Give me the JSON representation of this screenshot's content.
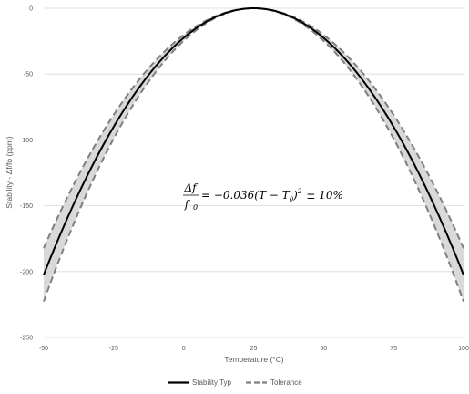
{
  "chart_data": {
    "type": "line",
    "title": "",
    "xlabel": "Temperature (°C)",
    "ylabel": "Stability - Δf/fo (ppm)",
    "xlim": [
      -50,
      100
    ],
    "ylim": [
      -250,
      0
    ],
    "x_ticks": [
      "-50",
      "-25",
      "0",
      "25",
      "50",
      "75",
      "100"
    ],
    "y_ticks": [
      "0",
      "-50",
      "-100",
      "-150",
      "-200",
      "-250"
    ],
    "grid": "horizontal",
    "legend_position": "bottom",
    "formula": {
      "lhs_num": "Δf",
      "lhs_den": "f",
      "lhs_den_sub": "0",
      "rhs_pre": "= −0.036(",
      "rhs_T": "T",
      "rhs_minus": " − ",
      "rhs_T0": "T",
      "rhs_T0_sub": "0",
      "rhs_close": ")",
      "rhs_exp": "2",
      "rhs_tol": "± 10%"
    },
    "model": {
      "coefficient": -0.036,
      "t0": 25,
      "tolerance_fraction": 0.1
    },
    "x": [
      -50,
      -37.5,
      -25,
      -12.5,
      0,
      12.5,
      25,
      37.5,
      50,
      62.5,
      75,
      87.5,
      100
    ],
    "series": [
      {
        "name": "Stability Typ",
        "style": "solid",
        "color": "#000000",
        "values": [
          -202.5,
          -140.6,
          -90,
          -50.6,
          -22.5,
          -5.6,
          0,
          -5.6,
          -22.5,
          -50.6,
          -90,
          -140.6,
          -202.5
        ]
      },
      {
        "name": "Tolerance",
        "style": "dashed",
        "color": "#7f7f7f",
        "values": [
          -222.75,
          -154.7,
          -99,
          -55.7,
          -24.75,
          -6.2,
          0,
          -6.2,
          -24.75,
          -55.7,
          -99,
          -154.7,
          -222.75
        ]
      },
      {
        "name": "",
        "style": "dashed",
        "color": "#7f7f7f",
        "values": [
          -182.25,
          -126.6,
          -81,
          -45.6,
          -20.25,
          -5.1,
          0,
          -5.1,
          -20.25,
          -45.6,
          -81,
          -126.6,
          -182.25
        ]
      }
    ],
    "band_fill_color": "#d9d9d9",
    "legend": [
      {
        "label": "Stability Typ",
        "style": "solid"
      },
      {
        "label": "Tolerance",
        "style": "dashed"
      }
    ]
  }
}
